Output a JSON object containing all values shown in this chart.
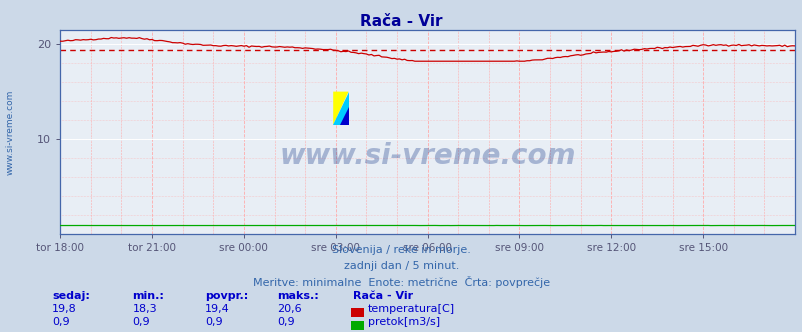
{
  "title": "Rača - Vir",
  "title_color": "#000099",
  "bg_color": "#ccd9e8",
  "plot_bg_color": "#e8eef5",
  "temp_color": "#cc0000",
  "flow_color": "#00aa00",
  "avg_line_color": "#cc0000",
  "x_tick_labels": [
    "tor 18:00",
    "tor 21:00",
    "sre 00:00",
    "sre 03:00",
    "sre 06:00",
    "sre 09:00",
    "sre 12:00",
    "sre 15:00"
  ],
  "x_tick_positions": [
    0,
    36,
    72,
    108,
    144,
    180,
    216,
    252
  ],
  "n_points": 289,
  "ylim": [
    0,
    21.5
  ],
  "yticks": [
    10,
    20
  ],
  "temp_avg": 19.4,
  "temp_min": 18.3,
  "temp_max": 20.6,
  "temp_current": 19.8,
  "flow_avg": 0.9,
  "flow_min": 0.9,
  "flow_max": 0.9,
  "flow_current": 0.9,
  "watermark": "www.si-vreme.com",
  "watermark_color": "#1a3a8a",
  "subtitle1": "Slovenija / reke in morje.",
  "subtitle2": "zadnji dan / 5 minut.",
  "subtitle3": "Meritve: minimalne  Enote: metrične  Črta: povprečje",
  "subtitle_color": "#3366aa",
  "label_color": "#0000cc",
  "left_label": "www.si-vreme.com",
  "left_label_color": "#3366aa",
  "vgrid_color": "#ffaaaa",
  "hgrid_color": "#ffaaaa",
  "white_hgrid_color": "#ffffff",
  "spine_color": "#4466aa",
  "tick_color": "#555577"
}
